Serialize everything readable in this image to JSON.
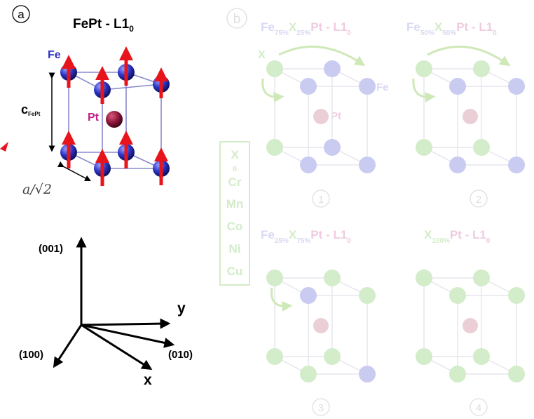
{
  "colors": {
    "fe": "#2b34c4",
    "pt": "#8a1538",
    "spin_arrow": "#e8141c",
    "cell_edge": "#8888cc",
    "faded_fe": "#c9cbf0",
    "faded_x": "#d3ecc9",
    "faded_pt": "#ead0d6",
    "faded_text": "#d8d9f2",
    "faded_x_text": "#d3ecc9",
    "faded_pt_text": "#f0cbe0"
  },
  "panel_a": {
    "label": "a",
    "title": "FePt - L1",
    "title_sub": "0",
    "fe_label": "Fe",
    "pt_label": "Pt",
    "c_label": "c",
    "c_sub": "FePt",
    "a_label": "a/√2"
  },
  "axes": {
    "z001": "(001)",
    "v100": "(100)",
    "v010": "(010)",
    "x": "x",
    "y": "y"
  },
  "panel_b": {
    "label": "b",
    "x_label": "X",
    "fe_label": "Fe",
    "pt_label": "Pt",
    "legend": [
      "X",
      "II",
      "Cr",
      "Mn",
      "Co",
      "Ni",
      "Cu"
    ],
    "cells": [
      {
        "num": "1",
        "t1": "Fe",
        "t1s": "75%",
        "t2": "X",
        "t2s": "25%",
        "t3": "Pt - L1",
        "t3s": "0"
      },
      {
        "num": "2",
        "t1": "Fe",
        "t1s": "50%",
        "t2": "X",
        "t2s": "50%",
        "t3": "Pt - L1",
        "t3s": "0"
      },
      {
        "num": "3",
        "t1": "Fe",
        "t1s": "25%",
        "t2": "X",
        "t2s": "75%",
        "t3": "Pt - L1",
        "t3s": "0"
      },
      {
        "num": "4",
        "t1": "",
        "t1s": "",
        "t2": "X",
        "t2s": "100%",
        "t3": "Pt - L1",
        "t3s": "0"
      }
    ]
  }
}
